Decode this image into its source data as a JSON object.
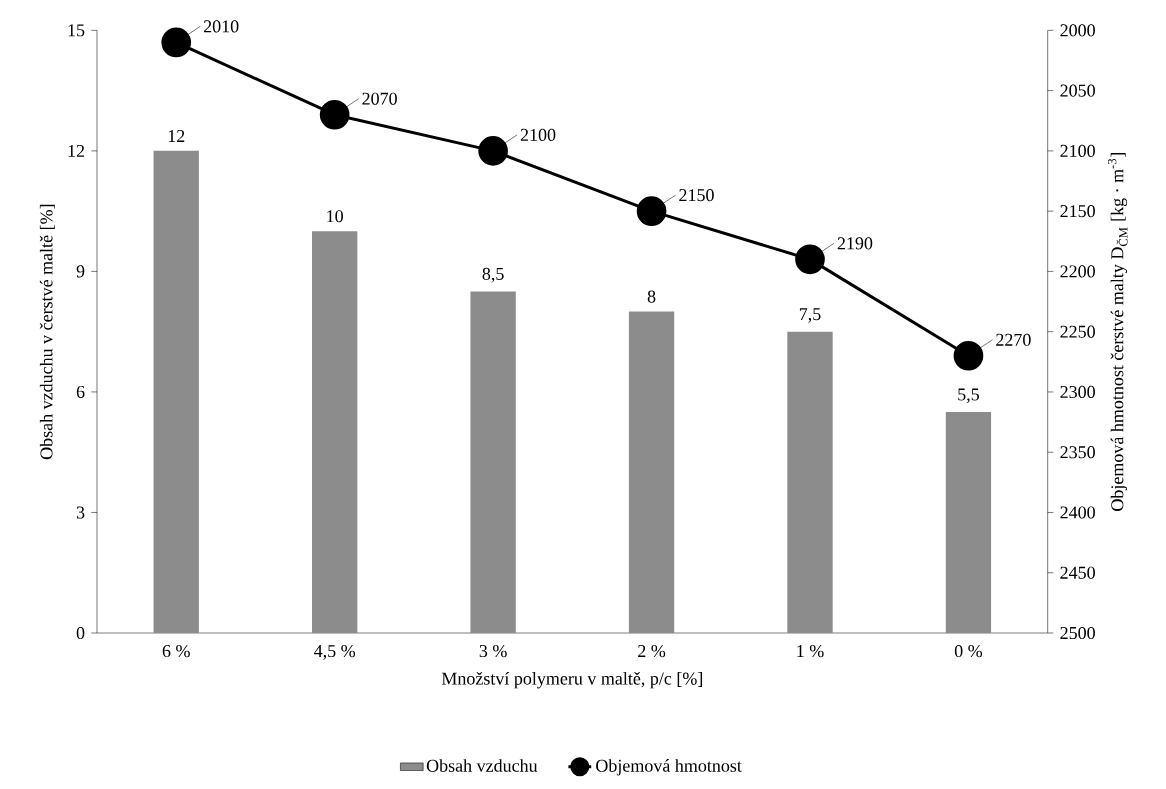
{
  "chart_data": {
    "type": "bar",
    "xlabel": "Množství polymeru v maltě, p/c [%]",
    "ylabel": "Obsah vzduchu v čerstvé maltě [%]",
    "y2label": "Objemová hmotnost čerstvé malty D$_{ČM}$ [kg · m$^{-3}$]",
    "categories": [
      "6 %",
      "4,5 %",
      "3 %",
      "2 %",
      "1 %",
      "0 %"
    ],
    "series": [
      {
        "name": "Obsah vzduchu",
        "color": "#8c8c8c",
        "values": [
          12,
          10,
          8.5,
          8,
          7.5,
          5.5
        ],
        "value_labels": [
          "12",
          "10",
          "8,5",
          "8",
          "7,5",
          "5,5"
        ]
      },
      {
        "name": "Objemová hmotnost",
        "type": "line",
        "axis": "y2",
        "color": "#000000",
        "marker": "circle",
        "values": [
          2010,
          2070,
          2100,
          2150,
          2190,
          2270
        ],
        "value_labels": [
          "2010",
          "2070",
          "2100",
          "2150",
          "2190",
          "2270"
        ]
      }
    ],
    "ylim": [
      0,
      15
    ],
    "yticks": [
      0,
      3,
      6,
      9,
      12,
      15
    ],
    "y2lim": [
      2500,
      2000
    ],
    "y2ticks": [
      2000,
      2050,
      2100,
      2150,
      2200,
      2250,
      2300,
      2350,
      2400,
      2450,
      2500
    ],
    "grid": false,
    "legend": "bottom"
  }
}
